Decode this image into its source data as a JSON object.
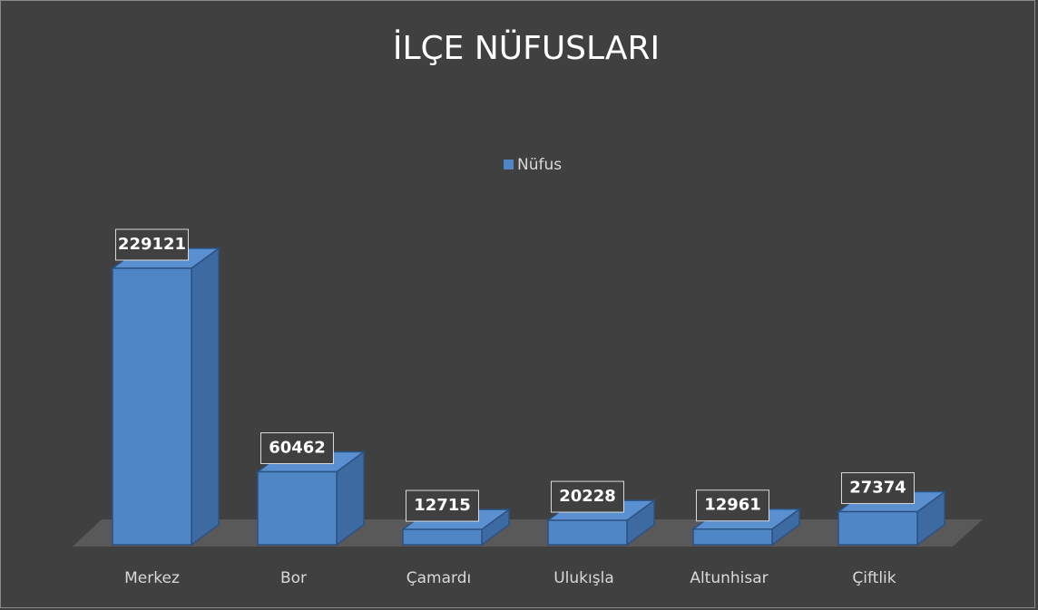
{
  "chart_data": {
    "type": "bar3d",
    "title": "İLÇE NÜFUSLARI",
    "categories": [
      "Merkez",
      "Bor",
      "Çamardı",
      "Ulukışla",
      "Altunhisar",
      "Çiftlik"
    ],
    "series": [
      {
        "name": "Nüfus",
        "color": "#4f86c6",
        "values": [
          229121,
          60462,
          12715,
          20228,
          12961,
          27374
        ]
      }
    ],
    "legend": "top"
  }
}
